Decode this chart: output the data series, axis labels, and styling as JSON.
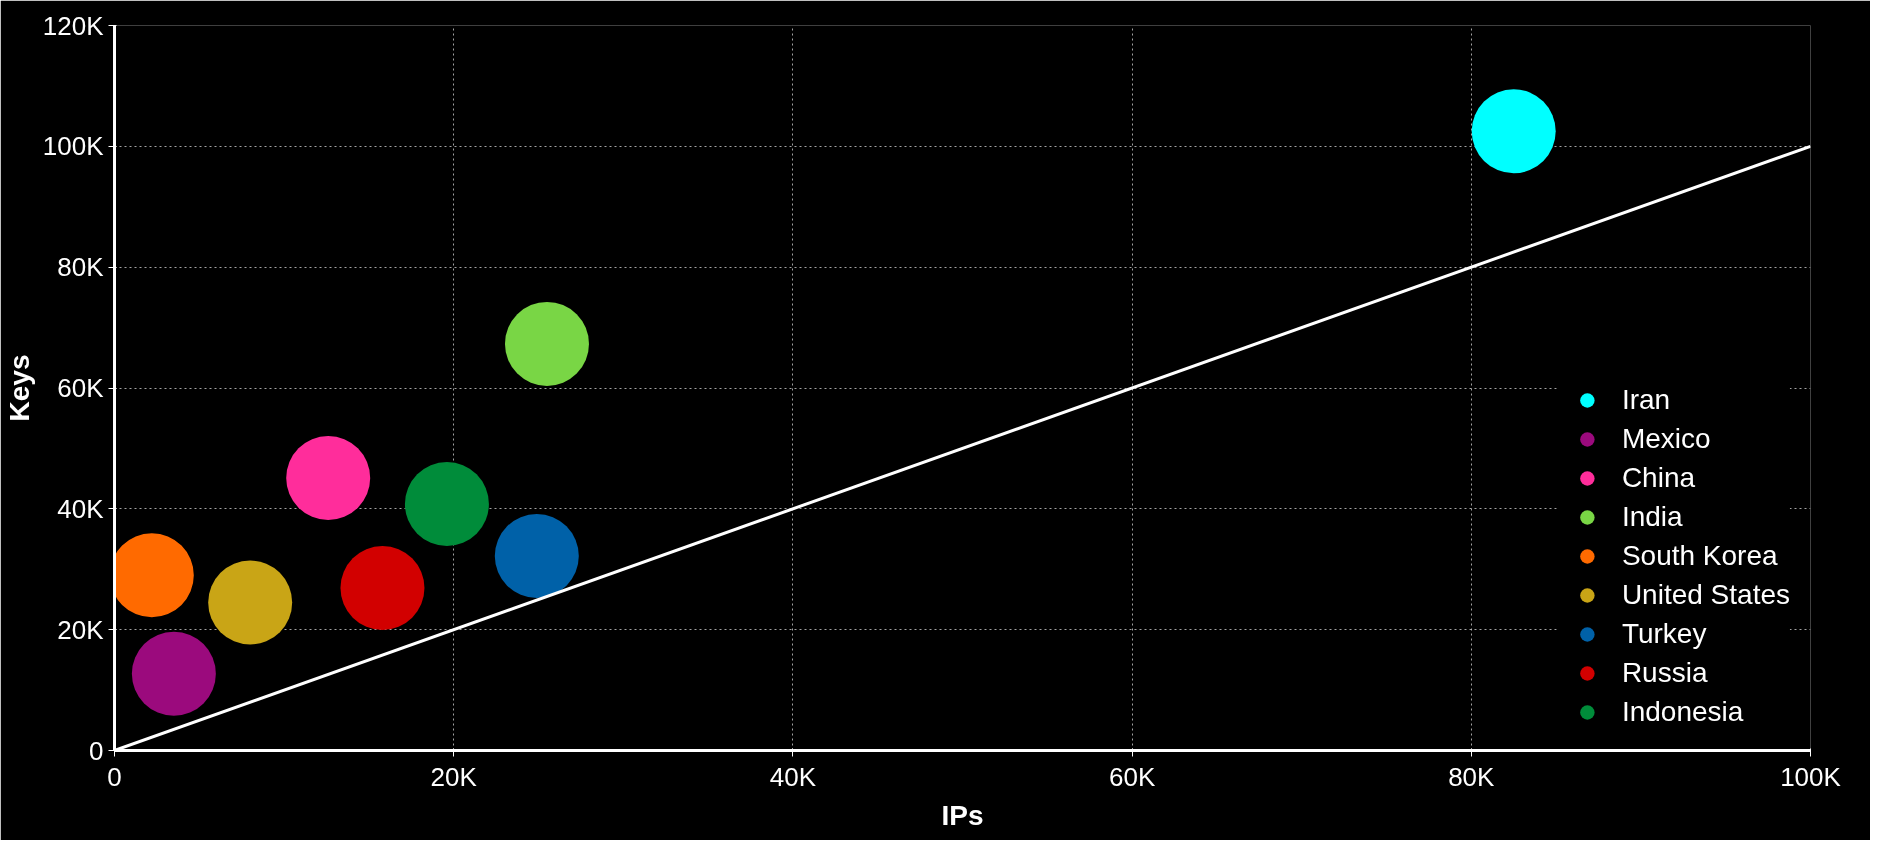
{
  "chart_data": {
    "type": "scatter",
    "xlabel": "IPs",
    "ylabel": "Keys",
    "xlim": [
      0,
      100000
    ],
    "ylim": [
      0,
      120000
    ],
    "xticks": [
      {
        "value": 0,
        "label": "0"
      },
      {
        "value": 20000,
        "label": "20K"
      },
      {
        "value": 40000,
        "label": "40K"
      },
      {
        "value": 60000,
        "label": "60K"
      },
      {
        "value": 80000,
        "label": "80K"
      },
      {
        "value": 100000,
        "label": "100K"
      }
    ],
    "yticks": [
      {
        "value": 0,
        "label": "0"
      },
      {
        "value": 20000,
        "label": "20K"
      },
      {
        "value": 40000,
        "label": "40K"
      },
      {
        "value": 60000,
        "label": "60K"
      },
      {
        "value": 80000,
        "label": "80K"
      },
      {
        "value": 100000,
        "label": "100K"
      },
      {
        "value": 120000,
        "label": "120K"
      }
    ],
    "grid": true,
    "legend": "bottom right",
    "marker": "circle",
    "series": [
      {
        "name": "Iran",
        "color": "#00ffff",
        "x": [
          82500
        ],
        "values": [
          102500
        ]
      },
      {
        "name": "Mexico",
        "color": "#9b0a7d",
        "x": [
          3500
        ],
        "values": [
          12700
        ]
      },
      {
        "name": "China",
        "color": "#ff2d9b",
        "x": [
          12600
        ],
        "values": [
          45100
        ]
      },
      {
        "name": "India",
        "color": "#79d645",
        "x": [
          25500
        ],
        "values": [
          67300
        ]
      },
      {
        "name": "South Korea",
        "color": "#ff6a00",
        "x": [
          2200
        ],
        "values": [
          29000
        ]
      },
      {
        "name": "United States",
        "color": "#c9a516",
        "x": [
          8000
        ],
        "values": [
          24500
        ]
      },
      {
        "name": "Turkey",
        "color": "#0061a8",
        "x": [
          24900
        ],
        "values": [
          32200
        ]
      },
      {
        "name": "Russia",
        "color": "#d20000",
        "x": [
          15800
        ],
        "values": [
          26900
        ]
      },
      {
        "name": "Indonesia",
        "color": "#008c3a",
        "x": [
          19600
        ],
        "values": [
          40800
        ]
      },
      {
        "type": "line",
        "color": "#ffffff",
        "marker": "none",
        "line_style": "solid",
        "x": [
          0,
          100000
        ],
        "values": [
          0,
          100000
        ]
      }
    ]
  }
}
